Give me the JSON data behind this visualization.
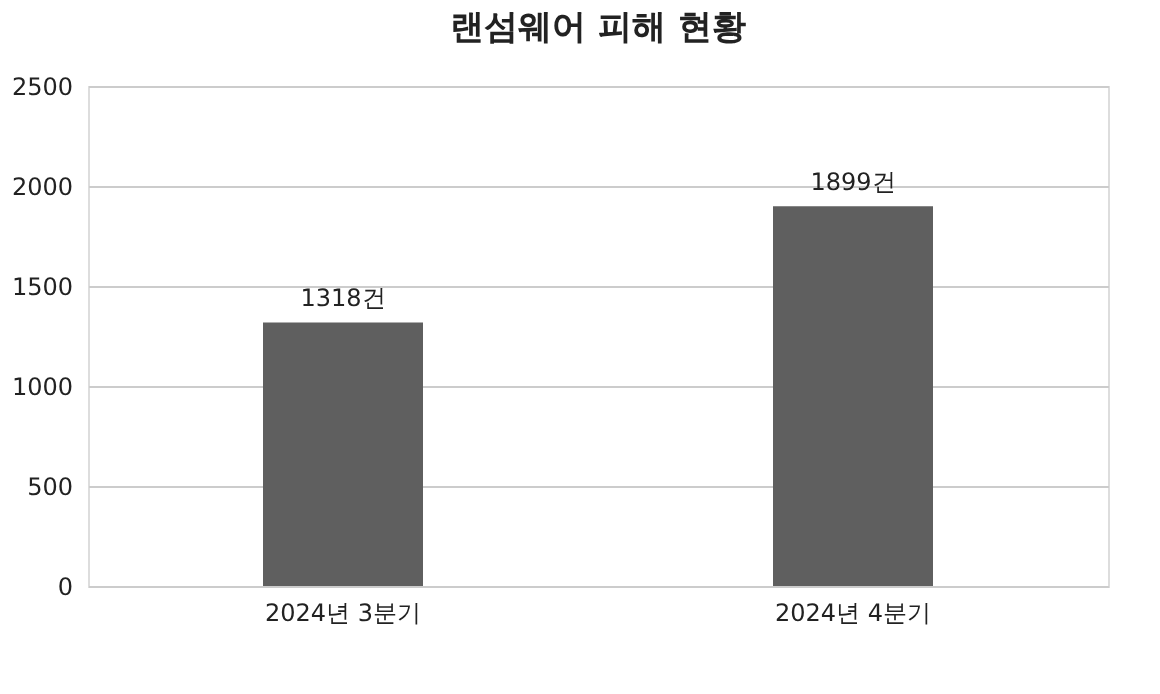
{
  "chart_data": {
    "type": "bar",
    "title": "랜섬웨어 피해 현황",
    "categories": [
      "2024년 3분기",
      "2024년 4분기"
    ],
    "values": [
      1318,
      1899
    ],
    "value_labels": [
      "1318건",
      "1899건"
    ],
    "color": "#5f5f5f",
    "ylim": [
      0,
      2500
    ],
    "yticks": [
      0,
      500,
      1000,
      1500,
      2000,
      2500
    ],
    "grid": "y"
  }
}
